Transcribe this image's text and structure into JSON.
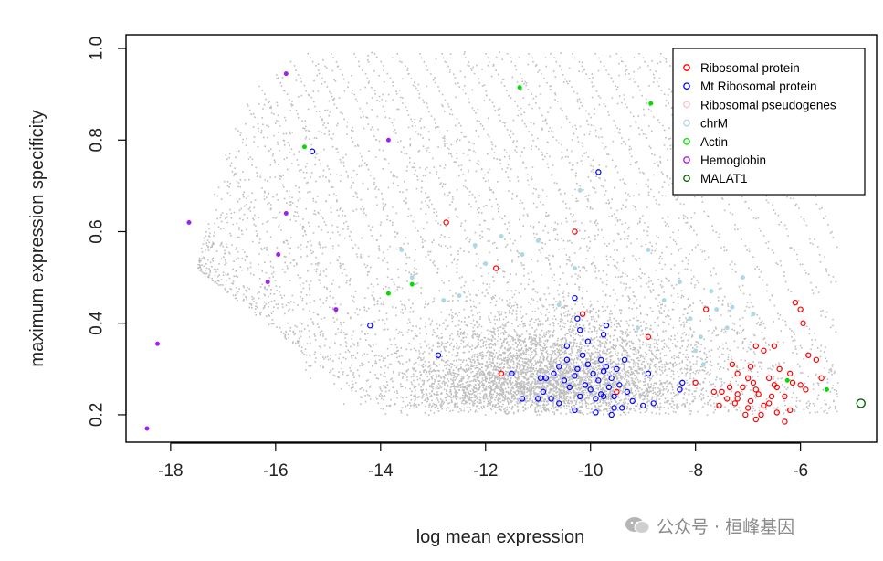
{
  "chart_data": {
    "type": "scatter",
    "title": "",
    "xlabel": "log mean expression",
    "ylabel": "maximum expression specificity",
    "xlim": [
      -18.85,
      -4.55
    ],
    "ylim": [
      0.14,
      1.03
    ],
    "xticks": [
      -18,
      -16,
      -14,
      -12,
      -10,
      -8,
      -6
    ],
    "yticks": [
      0.2,
      0.4,
      0.6,
      0.8,
      1.0
    ],
    "xtick_labels": [
      "-18",
      "-16",
      "-14",
      "-12",
      "-10",
      "-8",
      "-6"
    ],
    "ytick_labels": [
      "0.2",
      "0.4",
      "0.6",
      "0.8",
      "1.0"
    ],
    "background": {
      "name": "All genes",
      "color": "#bebebe",
      "description_count_estimate": 9000
    },
    "legend": {
      "position": "top-right",
      "entries": [
        {
          "label": "Ribosomal protein",
          "color": "#ff0000"
        },
        {
          "label": "Mt Ribosomal protein",
          "color": "#0000ff"
        },
        {
          "label": "Ribosomal pseudogenes",
          "color": "#ffc0cb"
        },
        {
          "label": "chrM",
          "color": "#add8e6"
        },
        {
          "label": "Actin",
          "color": "#00dd00"
        },
        {
          "label": "Hemoglobin",
          "color": "#a020f0"
        },
        {
          "label": "MALAT1",
          "color": "#006400"
        }
      ]
    },
    "series": [
      {
        "name": "Hemoglobin",
        "color": "#a020f0",
        "marker": "circle-filled-small",
        "points": [
          [
            -18.45,
            0.17
          ],
          [
            -18.25,
            0.355
          ],
          [
            -17.65,
            0.62
          ],
          [
            -16.15,
            0.49
          ],
          [
            -15.95,
            0.55
          ],
          [
            -15.8,
            0.64
          ],
          [
            -15.8,
            0.945
          ],
          [
            -14.85,
            0.43
          ],
          [
            -13.85,
            0.8
          ]
        ]
      },
      {
        "name": "Actin",
        "color": "#00dd00",
        "marker": "circle-filled-small",
        "points": [
          [
            -15.45,
            0.785
          ],
          [
            -13.85,
            0.465
          ],
          [
            -13.4,
            0.485
          ],
          [
            -11.35,
            0.915
          ],
          [
            -8.85,
            0.88
          ],
          [
            -6.25,
            0.275
          ],
          [
            -5.5,
            0.255
          ]
        ]
      },
      {
        "name": "MALAT1",
        "color": "#006400",
        "marker": "circle-open-large",
        "points": [
          [
            -4.85,
            0.225
          ]
        ]
      },
      {
        "name": "chrM",
        "color": "#add8e6",
        "marker": "circle-filled-small",
        "points": [
          [
            -13.6,
            0.56
          ],
          [
            -13.4,
            0.5
          ],
          [
            -12.8,
            0.45
          ],
          [
            -12.5,
            0.46
          ],
          [
            -12.2,
            0.57
          ],
          [
            -12.0,
            0.53
          ],
          [
            -11.7,
            0.59
          ],
          [
            -11.3,
            0.55
          ],
          [
            -11.0,
            0.58
          ],
          [
            -10.6,
            0.44
          ],
          [
            -10.3,
            0.52
          ],
          [
            -9.1,
            0.39
          ],
          [
            -8.9,
            0.56
          ],
          [
            -8.6,
            0.45
          ],
          [
            -8.3,
            0.49
          ],
          [
            -8.1,
            0.41
          ],
          [
            -7.9,
            0.37
          ],
          [
            -7.7,
            0.47
          ],
          [
            -7.6,
            0.43
          ],
          [
            -7.3,
            0.435
          ],
          [
            -7.1,
            0.5
          ],
          [
            -6.9,
            0.42
          ],
          [
            -8.0,
            0.34
          ],
          [
            -7.85,
            0.31
          ],
          [
            -7.4,
            0.39
          ],
          [
            -10.2,
            0.69
          ]
        ]
      },
      {
        "name": "Ribosomal protein",
        "color": "#ff0000",
        "marker": "circle-open",
        "points": [
          [
            -12.75,
            0.62
          ],
          [
            -11.8,
            0.52
          ],
          [
            -11.7,
            0.29
          ],
          [
            -10.3,
            0.6
          ],
          [
            -10.15,
            0.42
          ],
          [
            -8.9,
            0.37
          ],
          [
            -8.0,
            0.27
          ],
          [
            -7.8,
            0.43
          ],
          [
            -7.2,
            0.29
          ],
          [
            -6.85,
            0.35
          ],
          [
            -6.7,
            0.34
          ],
          [
            -6.5,
            0.35
          ],
          [
            -6.1,
            0.445
          ],
          [
            -6.0,
            0.43
          ],
          [
            -5.95,
            0.4
          ],
          [
            -5.7,
            0.32
          ],
          [
            -5.6,
            0.28
          ],
          [
            -5.85,
            0.33
          ],
          [
            -6.0,
            0.265
          ],
          [
            -5.9,
            0.255
          ],
          [
            -6.15,
            0.27
          ],
          [
            -6.3,
            0.24
          ],
          [
            -6.45,
            0.26
          ],
          [
            -6.55,
            0.24
          ],
          [
            -6.6,
            0.225
          ],
          [
            -6.7,
            0.22
          ],
          [
            -6.8,
            0.245
          ],
          [
            -6.85,
            0.255
          ],
          [
            -6.95,
            0.23
          ],
          [
            -7.0,
            0.215
          ],
          [
            -7.05,
            0.2
          ],
          [
            -7.1,
            0.26
          ],
          [
            -7.2,
            0.245
          ],
          [
            -7.25,
            0.225
          ],
          [
            -7.35,
            0.26
          ],
          [
            -7.4,
            0.235
          ],
          [
            -7.5,
            0.25
          ],
          [
            -7.55,
            0.22
          ],
          [
            -7.65,
            0.25
          ],
          [
            -6.75,
            0.2
          ],
          [
            -6.45,
            0.205
          ],
          [
            -6.3,
            0.185
          ],
          [
            -6.2,
            0.21
          ],
          [
            -6.9,
            0.27
          ],
          [
            -6.6,
            0.28
          ],
          [
            -6.4,
            0.3
          ],
          [
            -6.95,
            0.305
          ],
          [
            -7.3,
            0.31
          ],
          [
            -7.0,
            0.28
          ],
          [
            -6.5,
            0.265
          ],
          [
            -6.2,
            0.29
          ],
          [
            -7.2,
            0.235
          ],
          [
            -6.85,
            0.19
          ],
          [
            -9.5,
            0.25
          ]
        ]
      },
      {
        "name": "Mt Ribosomal protein",
        "color": "#0000ff",
        "marker": "circle-open",
        "points": [
          [
            -15.3,
            0.775
          ],
          [
            -14.2,
            0.395
          ],
          [
            -12.9,
            0.33
          ],
          [
            -11.5,
            0.29
          ],
          [
            -9.85,
            0.73
          ],
          [
            -10.3,
            0.455
          ],
          [
            -10.25,
            0.41
          ],
          [
            -10.2,
            0.385
          ],
          [
            -10.05,
            0.36
          ],
          [
            -9.75,
            0.375
          ],
          [
            -9.7,
            0.395
          ],
          [
            -11.0,
            0.235
          ],
          [
            -10.9,
            0.25
          ],
          [
            -10.85,
            0.28
          ],
          [
            -10.7,
            0.29
          ],
          [
            -10.6,
            0.305
          ],
          [
            -10.5,
            0.275
          ],
          [
            -10.45,
            0.32
          ],
          [
            -10.4,
            0.26
          ],
          [
            -10.3,
            0.285
          ],
          [
            -10.25,
            0.3
          ],
          [
            -10.2,
            0.24
          ],
          [
            -10.1,
            0.265
          ],
          [
            -10.05,
            0.31
          ],
          [
            -10.0,
            0.255
          ],
          [
            -9.95,
            0.29
          ],
          [
            -9.9,
            0.235
          ],
          [
            -9.85,
            0.275
          ],
          [
            -9.8,
            0.245
          ],
          [
            -9.75,
            0.295
          ],
          [
            -9.7,
            0.305
          ],
          [
            -9.65,
            0.26
          ],
          [
            -9.6,
            0.28
          ],
          [
            -9.55,
            0.24
          ],
          [
            -9.5,
            0.3
          ],
          [
            -9.45,
            0.265
          ],
          [
            -9.4,
            0.215
          ],
          [
            -9.3,
            0.25
          ],
          [
            -9.2,
            0.23
          ],
          [
            -9.0,
            0.22
          ],
          [
            -8.9,
            0.29
          ],
          [
            -8.8,
            0.225
          ],
          [
            -8.3,
            0.255
          ],
          [
            -8.25,
            0.27
          ],
          [
            -10.6,
            0.225
          ],
          [
            -10.3,
            0.21
          ],
          [
            -9.9,
            0.205
          ],
          [
            -9.6,
            0.2
          ],
          [
            -10.75,
            0.235
          ],
          [
            -10.95,
            0.28
          ],
          [
            -11.3,
            0.235
          ],
          [
            -9.35,
            0.32
          ],
          [
            -10.15,
            0.33
          ],
          [
            -9.8,
            0.32
          ],
          [
            -10.45,
            0.35
          ],
          [
            -9.75,
            0.24
          ],
          [
            -9.55,
            0.215
          ]
        ]
      }
    ]
  },
  "watermark": {
    "text": "公众号 · 桓峰基因"
  }
}
